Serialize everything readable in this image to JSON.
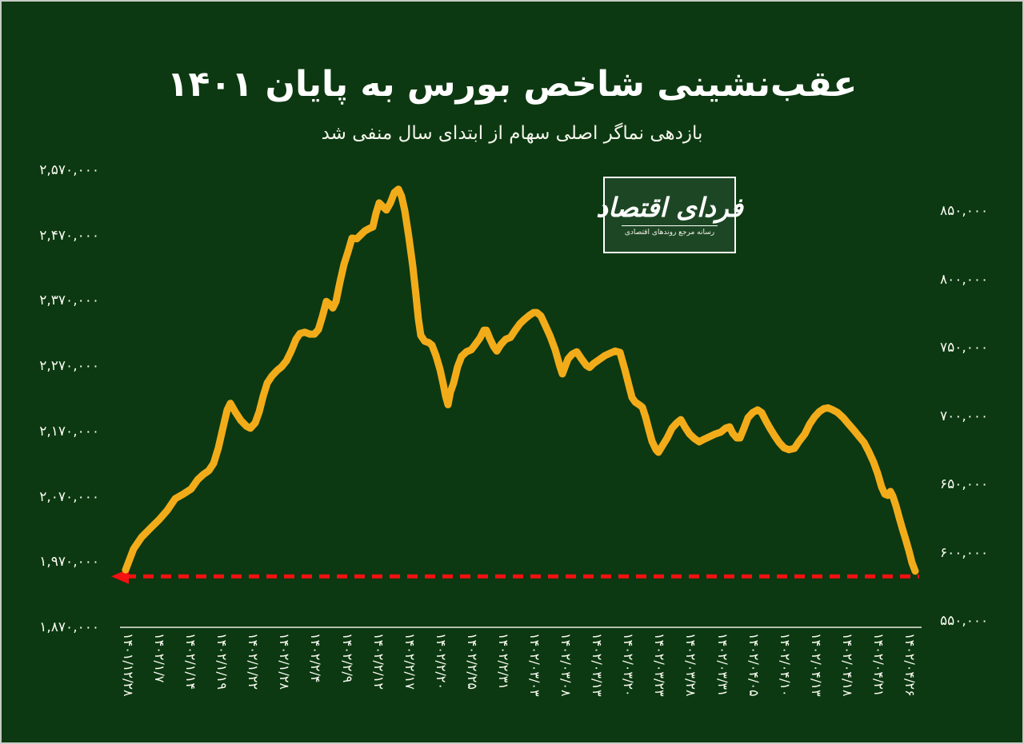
{
  "page": {
    "background_color": "#0C3911",
    "border_color": "#C7CBC6"
  },
  "header": {
    "title": "عقب‌نشینی شاخص بورس به پایان ۱۴۰۱",
    "subtitle": "بازدهی نماگر اصلی سهام از ابتدای سال منفی شد"
  },
  "logo": {
    "name": "فردای اقتصاد",
    "tagline": "رسانه مرجع روندهای اقتصادی"
  },
  "chart_data": {
    "type": "line",
    "title": "عقب‌نشینی شاخص بورس به پایان ۱۴۰۱",
    "subtitle": "بازدهی نماگر اصلی سهام از ابتدای سال منفی شد",
    "grid": false,
    "legend": false,
    "line_color": "#F2AC1A",
    "x_tick_labels": [
      "۱۴۰۱/۱۲/۲۸",
      "۱۴۰۲/۱/۷",
      "۱۴۰۲/۱/۱۴",
      "۱۴۰۲/۱/۱۹",
      "۱۴۰۲/۱/۲۲",
      "۱۴۰۲/۱/۲۸",
      "۱۴۰۲/۲/۴",
      "۱۴۰۲/۲/۹",
      "۱۴۰۲/۲/۱۲",
      "۱۴۰۲/۲/۱۷",
      "۱۴۰۲/۲/۲۰",
      "۱۴۰۲/۲/۲۵",
      "۱۴۰۲/۲/۳۱",
      "۱۴۰۲/۰۳/۰۳",
      "۱۴۰۲/۰۳/۰۸",
      "۱۴۰۲/۰۳/۱۳",
      "۱۴۰۲/۰۳/۲۰",
      "۱۴۰۲/۰۳/۲۳",
      "۱۴۰۲/۰۳/۲۸",
      "۱۴۰۲/۰۳/۳۱",
      "۱۴۰۲/۰۴/۰۵",
      "۱۴۰۲/۰۴/۱۰",
      "۱۴۰۲/۰۴/۱۳",
      "۱۴۰۲/۰۴/۱۸",
      "۱۴۰۲/۰۴/۲۱",
      "۱۴۰۲/۰۴/۲۶"
    ],
    "y_axis_left": {
      "tick_labels": [
        "۲,۵۷۰,۰۰۰",
        "۲,۴۷۰,۰۰۰",
        "۲,۳۷۰,۰۰۰",
        "۲,۲۷۰,۰۰۰",
        "۲,۱۷۰,۰۰۰",
        "۲,۰۷۰,۰۰۰",
        "۱,۹۷۰,۰۰۰",
        "۱,۸۷۰,۰۰۰"
      ],
      "tick_values": [
        2570000,
        2470000,
        2370000,
        2270000,
        2170000,
        2070000,
        1970000,
        1870000
      ],
      "max": 2570000,
      "min": 1870000
    },
    "y_axis_right": {
      "tick_labels": [
        "۸۵۰,۰۰۰",
        "۸۰۰,۰۰۰",
        "۷۵۰,۰۰۰",
        "۷۰۰,۰۰۰",
        "۶۵۰,۰۰۰",
        "۶۰۰,۰۰۰",
        "۵۵۰,۰۰۰"
      ],
      "tick_values": [
        850000,
        800000,
        750000,
        700000,
        650000,
        600000,
        550000
      ],
      "max": 850000,
      "min": 550000
    },
    "annotation": {
      "type": "dashed-arrow-left",
      "color": "#F31111",
      "value": 1948000
    },
    "series": [
      {
        "color": "#F2AC1A",
        "points": [
          [
            0.007,
            1958000
          ],
          [
            0.017,
            1990000
          ],
          [
            0.027,
            2008000
          ],
          [
            0.039,
            2023000
          ],
          [
            0.049,
            2035000
          ],
          [
            0.059,
            2049000
          ],
          [
            0.069,
            2067000
          ],
          [
            0.079,
            2074000
          ],
          [
            0.089,
            2082000
          ],
          [
            0.097,
            2096000
          ],
          [
            0.104,
            2104000
          ],
          [
            0.111,
            2110000
          ],
          [
            0.117,
            2121000
          ],
          [
            0.123,
            2145000
          ],
          [
            0.129,
            2177000
          ],
          [
            0.134,
            2203000
          ],
          [
            0.138,
            2213000
          ],
          [
            0.144,
            2200000
          ],
          [
            0.151,
            2187000
          ],
          [
            0.158,
            2178000
          ],
          [
            0.163,
            2175000
          ],
          [
            0.169,
            2183000
          ],
          [
            0.174,
            2200000
          ],
          [
            0.179,
            2224000
          ],
          [
            0.184,
            2244000
          ],
          [
            0.19,
            2255000
          ],
          [
            0.196,
            2263000
          ],
          [
            0.202,
            2269000
          ],
          [
            0.208,
            2278000
          ],
          [
            0.214,
            2293000
          ],
          [
            0.22,
            2311000
          ],
          [
            0.225,
            2320000
          ],
          [
            0.231,
            2322000
          ],
          [
            0.237,
            2319000
          ],
          [
            0.243,
            2319000
          ],
          [
            0.248,
            2326000
          ],
          [
            0.253,
            2346000
          ],
          [
            0.258,
            2369000
          ],
          [
            0.262,
            2365000
          ],
          [
            0.266,
            2359000
          ],
          [
            0.27,
            2369000
          ],
          [
            0.275,
            2399000
          ],
          [
            0.28,
            2426000
          ],
          [
            0.285,
            2445000
          ],
          [
            0.29,
            2466000
          ],
          [
            0.296,
            2465000
          ],
          [
            0.301,
            2471000
          ],
          [
            0.306,
            2477000
          ],
          [
            0.312,
            2481000
          ],
          [
            0.316,
            2483000
          ],
          [
            0.32,
            2504000
          ],
          [
            0.324,
            2520000
          ],
          [
            0.328,
            2515000
          ],
          [
            0.333,
            2509000
          ],
          [
            0.338,
            2520000
          ],
          [
            0.343,
            2536000
          ],
          [
            0.348,
            2541000
          ],
          [
            0.352,
            2530000
          ],
          [
            0.356,
            2508000
          ],
          [
            0.361,
            2468000
          ],
          [
            0.366,
            2423000
          ],
          [
            0.37,
            2378000
          ],
          [
            0.373,
            2342000
          ],
          [
            0.376,
            2317000
          ],
          [
            0.381,
            2308000
          ],
          [
            0.386,
            2306000
          ],
          [
            0.39,
            2302000
          ],
          [
            0.395,
            2286000
          ],
          [
            0.4,
            2265000
          ],
          [
            0.404,
            2243000
          ],
          [
            0.407,
            2224000
          ],
          [
            0.41,
            2211000
          ],
          [
            0.413,
            2230000
          ],
          [
            0.417,
            2244000
          ],
          [
            0.422,
            2269000
          ],
          [
            0.427,
            2285000
          ],
          [
            0.433,
            2292000
          ],
          [
            0.439,
            2295000
          ],
          [
            0.444,
            2303000
          ],
          [
            0.45,
            2313000
          ],
          [
            0.455,
            2325000
          ],
          [
            0.458,
            2325000
          ],
          [
            0.462,
            2313000
          ],
          [
            0.467,
            2300000
          ],
          [
            0.471,
            2293000
          ],
          [
            0.476,
            2303000
          ],
          [
            0.482,
            2311000
          ],
          [
            0.488,
            2314000
          ],
          [
            0.494,
            2325000
          ],
          [
            0.5,
            2335000
          ],
          [
            0.506,
            2342000
          ],
          [
            0.512,
            2348000
          ],
          [
            0.517,
            2352000
          ],
          [
            0.521,
            2352000
          ],
          [
            0.526,
            2347000
          ],
          [
            0.531,
            2334000
          ],
          [
            0.538,
            2315000
          ],
          [
            0.544,
            2295000
          ],
          [
            0.55,
            2269000
          ],
          [
            0.553,
            2258000
          ],
          [
            0.556,
            2268000
          ],
          [
            0.56,
            2281000
          ],
          [
            0.565,
            2288000
          ],
          [
            0.571,
            2292000
          ],
          [
            0.577,
            2281000
          ],
          [
            0.583,
            2271000
          ],
          [
            0.587,
            2268000
          ],
          [
            0.592,
            2274000
          ],
          [
            0.599,
            2280000
          ],
          [
            0.606,
            2286000
          ],
          [
            0.613,
            2290000
          ],
          [
            0.619,
            2293000
          ],
          [
            0.625,
            2291000
          ],
          [
            0.631,
            2265000
          ],
          [
            0.636,
            2241000
          ],
          [
            0.64,
            2222000
          ],
          [
            0.644,
            2215000
          ],
          [
            0.65,
            2210000
          ],
          [
            0.653,
            2207000
          ],
          [
            0.657,
            2192000
          ],
          [
            0.661,
            2173000
          ],
          [
            0.665,
            2155000
          ],
          [
            0.67,
            2142000
          ],
          [
            0.673,
            2138000
          ],
          [
            0.678,
            2148000
          ],
          [
            0.684,
            2160000
          ],
          [
            0.69,
            2175000
          ],
          [
            0.696,
            2183000
          ],
          [
            0.701,
            2188000
          ],
          [
            0.706,
            2177000
          ],
          [
            0.712,
            2166000
          ],
          [
            0.718,
            2159000
          ],
          [
            0.724,
            2154000
          ],
          [
            0.73,
            2158000
          ],
          [
            0.737,
            2162000
          ],
          [
            0.744,
            2166000
          ],
          [
            0.751,
            2169000
          ],
          [
            0.757,
            2175000
          ],
          [
            0.762,
            2177000
          ],
          [
            0.766,
            2167000
          ],
          [
            0.771,
            2160000
          ],
          [
            0.775,
            2160000
          ],
          [
            0.78,
            2175000
          ],
          [
            0.785,
            2191000
          ],
          [
            0.791,
            2199000
          ],
          [
            0.797,
            2203000
          ],
          [
            0.802,
            2199000
          ],
          [
            0.807,
            2187000
          ],
          [
            0.812,
            2176000
          ],
          [
            0.818,
            2164000
          ],
          [
            0.824,
            2153000
          ],
          [
            0.83,
            2145000
          ],
          [
            0.836,
            2142000
          ],
          [
            0.843,
            2144000
          ],
          [
            0.849,
            2155000
          ],
          [
            0.856,
            2166000
          ],
          [
            0.862,
            2181000
          ],
          [
            0.868,
            2192000
          ],
          [
            0.874,
            2200000
          ],
          [
            0.88,
            2205000
          ],
          [
            0.885,
            2206000
          ],
          [
            0.891,
            2203000
          ],
          [
            0.897,
            2199000
          ],
          [
            0.904,
            2191000
          ],
          [
            0.911,
            2181000
          ],
          [
            0.918,
            2171000
          ],
          [
            0.924,
            2162000
          ],
          [
            0.93,
            2153000
          ],
          [
            0.936,
            2139000
          ],
          [
            0.942,
            2123000
          ],
          [
            0.947,
            2106000
          ],
          [
            0.952,
            2085000
          ],
          [
            0.956,
            2074000
          ],
          [
            0.96,
            2072000
          ],
          [
            0.963,
            2078000
          ],
          [
            0.966,
            2071000
          ],
          [
            0.97,
            2056000
          ],
          [
            0.974,
            2038000
          ],
          [
            0.978,
            2021000
          ],
          [
            0.982,
            2005000
          ],
          [
            0.986,
            1988000
          ],
          [
            0.99,
            1969000
          ],
          [
            0.994,
            1956000
          ]
        ]
      }
    ]
  }
}
